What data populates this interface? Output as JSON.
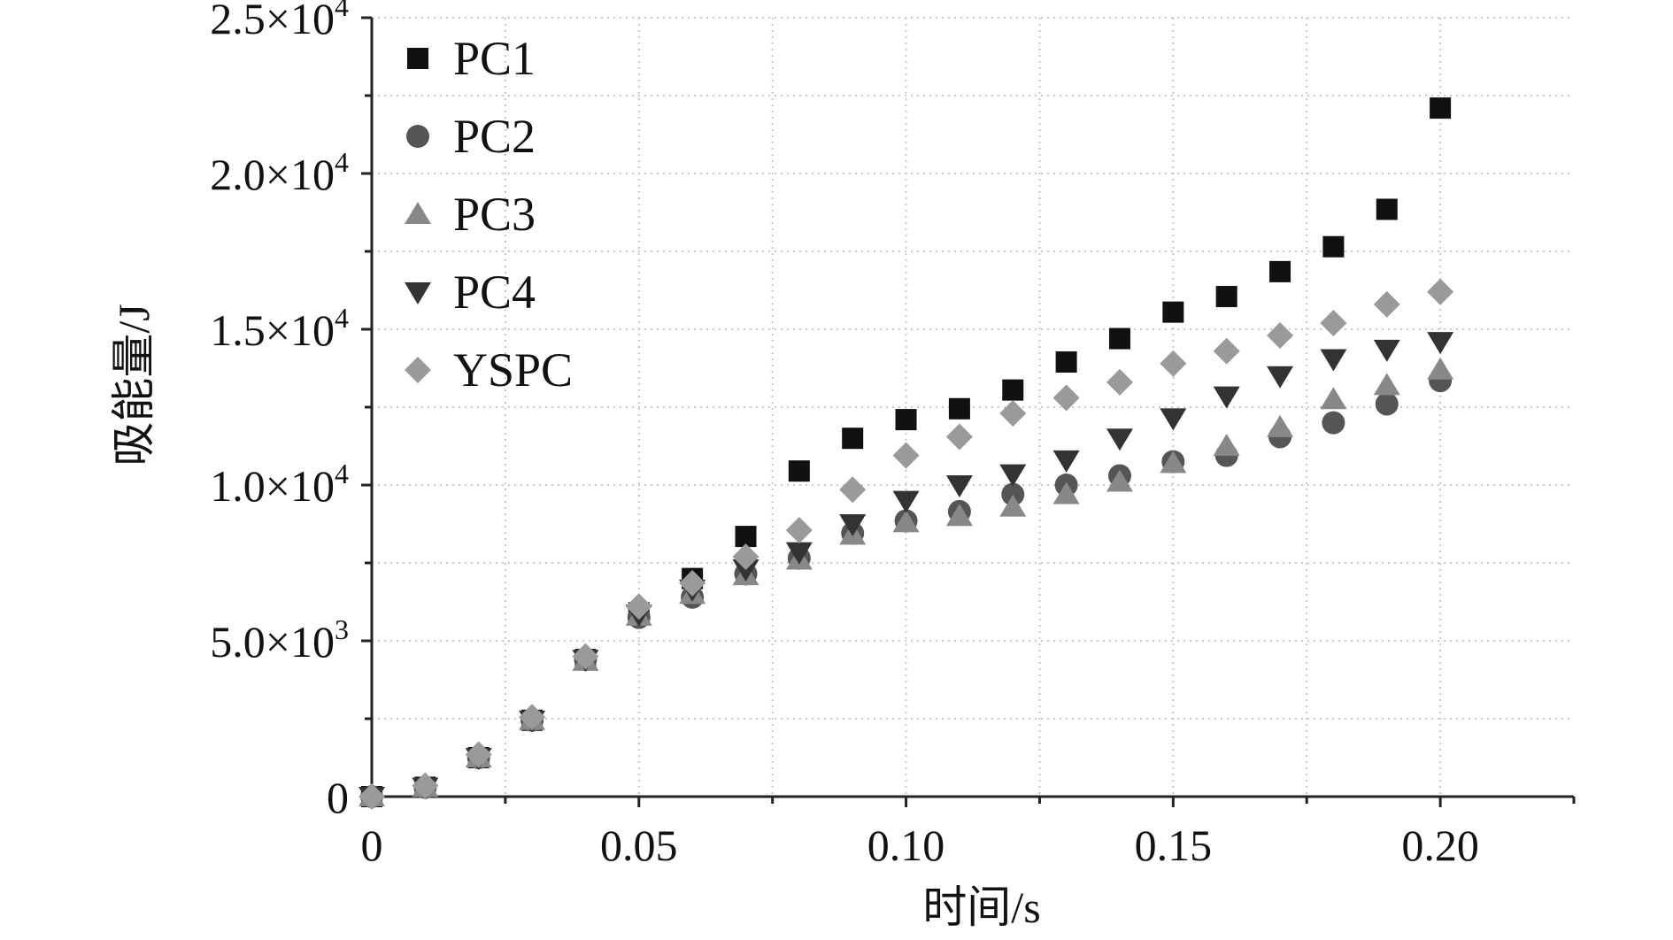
{
  "chart_data": {
    "type": "scatter",
    "xlabel": "时间/s",
    "ylabel": "吸能量/J",
    "xlim": [
      0,
      0.225
    ],
    "ylim": [
      0,
      25000
    ],
    "grid": true,
    "legend_position": "top-left",
    "x_ticks": [
      {
        "value": 0,
        "label": "0"
      },
      {
        "value": 0.05,
        "label": "0.05"
      },
      {
        "value": 0.1,
        "label": "0.10"
      },
      {
        "value": 0.15,
        "label": "0.15"
      },
      {
        "value": 0.2,
        "label": "0.20"
      }
    ],
    "y_ticks": [
      {
        "value": 0,
        "mantissa": "0",
        "exp": ""
      },
      {
        "value": 5000,
        "mantissa": "5.0×10",
        "exp": "3"
      },
      {
        "value": 10000,
        "mantissa": "1.0×10",
        "exp": "4"
      },
      {
        "value": 15000,
        "mantissa": "1.5×10",
        "exp": "4"
      },
      {
        "value": 20000,
        "mantissa": "2.0×10",
        "exp": "4"
      },
      {
        "value": 25000,
        "mantissa": "2.5×10",
        "exp": "4"
      }
    ],
    "x": [
      0,
      0.01,
      0.02,
      0.03,
      0.04,
      0.05,
      0.06,
      0.07,
      0.08,
      0.09,
      0.1,
      0.11,
      0.12,
      0.13,
      0.14,
      0.15,
      0.16,
      0.17,
      0.18,
      0.19,
      0.2
    ],
    "series": [
      {
        "name": "PC1",
        "marker": "square",
        "color": "#111111",
        "values": [
          0,
          300,
          1250,
          2450,
          4400,
          5900,
          7000,
          8350,
          10450,
          11500,
          12100,
          12450,
          13050,
          13950,
          14700,
          15550,
          16050,
          16850,
          17650,
          18850,
          22100
        ]
      },
      {
        "name": "PC2",
        "marker": "circle",
        "color": "#555555",
        "values": [
          0,
          300,
          1250,
          2450,
          4400,
          5750,
          6400,
          7150,
          7650,
          8450,
          8850,
          9150,
          9700,
          10000,
          10300,
          10750,
          10950,
          11550,
          12000,
          12600,
          13350
        ]
      },
      {
        "name": "PC3",
        "marker": "triangle-up",
        "color": "#888888",
        "values": [
          0,
          300,
          1250,
          2450,
          4350,
          5800,
          6500,
          7100,
          7600,
          8400,
          8800,
          9000,
          9300,
          9700,
          10100,
          10700,
          11250,
          11850,
          12750,
          13200,
          13700
        ]
      },
      {
        "name": "PC4",
        "marker": "triangle-down",
        "color": "#333333",
        "values": [
          0,
          300,
          1250,
          2450,
          4400,
          5850,
          6650,
          7300,
          7850,
          8750,
          9500,
          10000,
          10350,
          10800,
          11500,
          12150,
          12850,
          13500,
          14050,
          14350,
          14600
        ]
      },
      {
        "name": "YSPC",
        "marker": "diamond",
        "color": "#9a9a9a",
        "values": [
          0,
          350,
          1350,
          2550,
          4500,
          6100,
          6850,
          7700,
          8550,
          9850,
          10950,
          11550,
          12300,
          12800,
          13300,
          13900,
          14300,
          14800,
          15200,
          15800,
          16200
        ]
      }
    ]
  }
}
